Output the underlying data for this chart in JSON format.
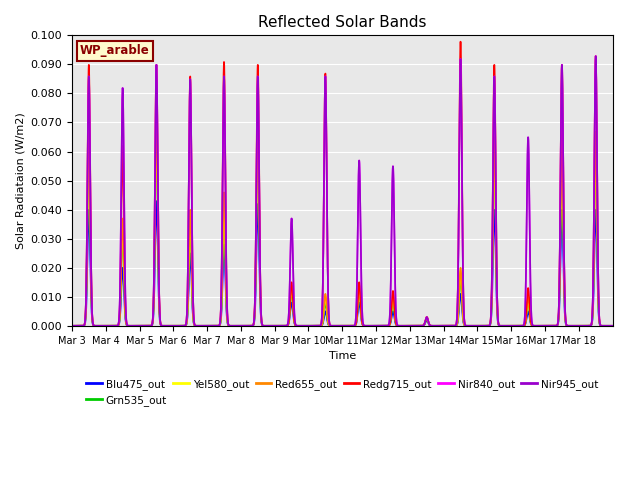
{
  "title": "Reflected Solar Bands",
  "xlabel": "Time",
  "ylabel": "Solar Radiataion (W/m2)",
  "annotation": "WP_arable",
  "ylim": [
    0,
    0.1
  ],
  "yticks": [
    0.0,
    0.01,
    0.02,
    0.03,
    0.04,
    0.05,
    0.06,
    0.07,
    0.08,
    0.09,
    0.1
  ],
  "series": [
    {
      "name": "Blu475_out",
      "color": "#0000ff"
    },
    {
      "name": "Grn535_out",
      "color": "#00cc00"
    },
    {
      "name": "Yel580_out",
      "color": "#ffff00"
    },
    {
      "name": "Red655_out",
      "color": "#ff8800"
    },
    {
      "name": "Redg715_out",
      "color": "#ff0000"
    },
    {
      "name": "Nir840_out",
      "color": "#ff00ff"
    },
    {
      "name": "Nir945_out",
      "color": "#9900cc"
    }
  ],
  "background_color": "#e8e8e8",
  "n_days": 16,
  "start_day": 3,
  "points_per_day": 200,
  "day_peaks_blu": [
    0.04,
    0.02,
    0.043,
    0.025,
    0.028,
    0.042,
    0.008,
    0.005,
    0.008,
    0.005,
    0.002,
    0.011,
    0.04,
    0.005,
    0.04,
    0.04
  ],
  "day_peaks_grn": [
    0.062,
    0.032,
    0.065,
    0.035,
    0.04,
    0.065,
    0.012,
    0.008,
    0.012,
    0.008,
    0.002,
    0.017,
    0.06,
    0.008,
    0.06,
    0.06
  ],
  "day_peaks_yel": [
    0.065,
    0.035,
    0.068,
    0.038,
    0.043,
    0.068,
    0.013,
    0.01,
    0.013,
    0.01,
    0.003,
    0.019,
    0.062,
    0.009,
    0.063,
    0.063
  ],
  "day_peaks_red": [
    0.07,
    0.037,
    0.072,
    0.04,
    0.046,
    0.072,
    0.014,
    0.011,
    0.014,
    0.011,
    0.003,
    0.02,
    0.065,
    0.01,
    0.067,
    0.067
  ],
  "day_peaks_redg": [
    0.09,
    0.062,
    0.09,
    0.086,
    0.091,
    0.09,
    0.015,
    0.087,
    0.015,
    0.012,
    0.003,
    0.098,
    0.09,
    0.013,
    0.09,
    0.093
  ],
  "day_peaks_nir840": [
    0.086,
    0.082,
    0.09,
    0.085,
    0.086,
    0.086,
    0.037,
    0.086,
    0.057,
    0.055,
    0.003,
    0.092,
    0.086,
    0.065,
    0.09,
    0.093
  ],
  "day_peaks_nir945": [
    0.086,
    0.082,
    0.09,
    0.085,
    0.086,
    0.086,
    0.037,
    0.086,
    0.057,
    0.055,
    0.003,
    0.092,
    0.086,
    0.065,
    0.09,
    0.093
  ],
  "sigma": 0.04,
  "figsize": [
    6.4,
    4.8
  ],
  "dpi": 100
}
